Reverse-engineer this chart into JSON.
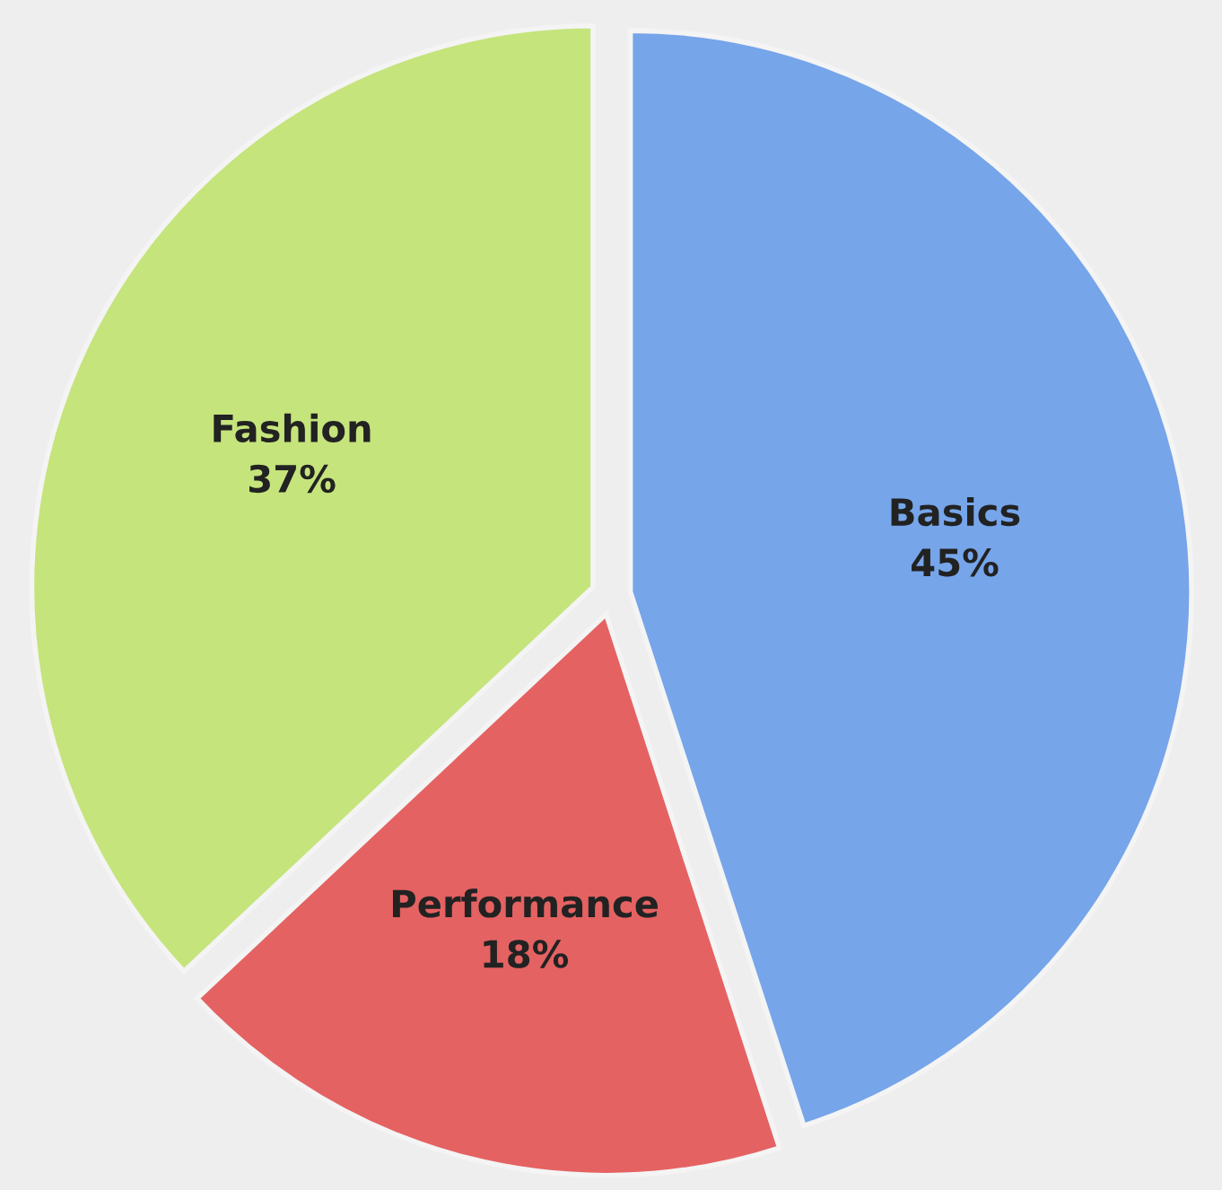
{
  "chart_data": {
    "type": "pie",
    "categories": [
      "Basics",
      "Performance",
      "Fashion"
    ],
    "values": [
      45,
      18,
      37
    ],
    "value_labels": [
      "45%",
      "18%",
      "37%"
    ],
    "colors": [
      "#76a5ea",
      "#e56262",
      "#c5e47c"
    ]
  }
}
